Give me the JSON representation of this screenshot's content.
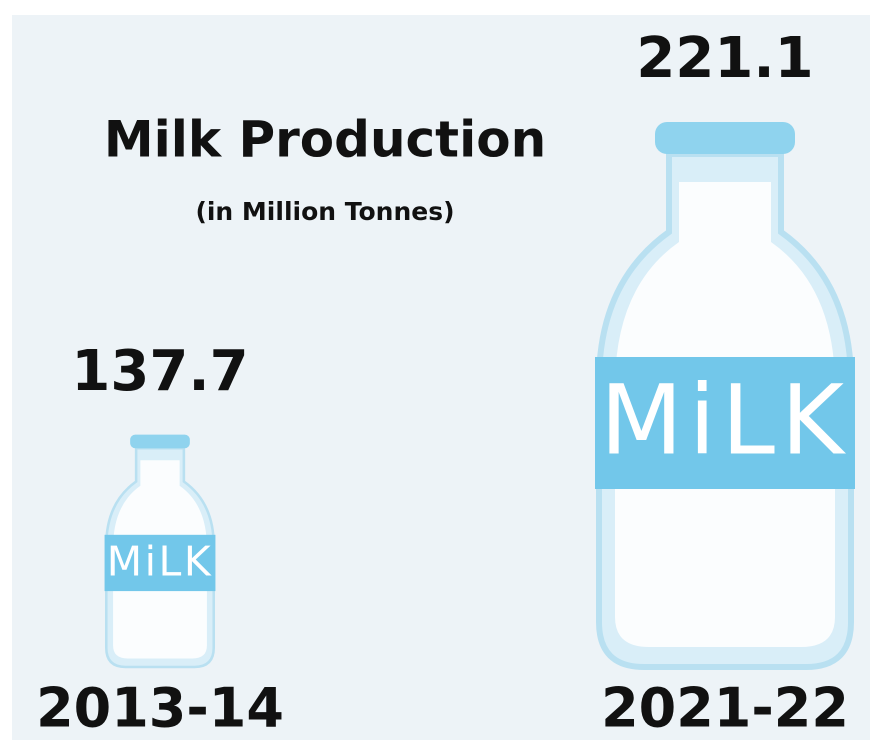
{
  "chart_data": {
    "type": "bottle",
    "title": "Milk Production",
    "subtitle": "(in Million Tonnes)",
    "bottle_text": "MiLK",
    "categories": [
      "2013-14",
      "2021-22"
    ],
    "values": [
      137.7,
      221.1
    ],
    "color": "#72c7ea"
  }
}
